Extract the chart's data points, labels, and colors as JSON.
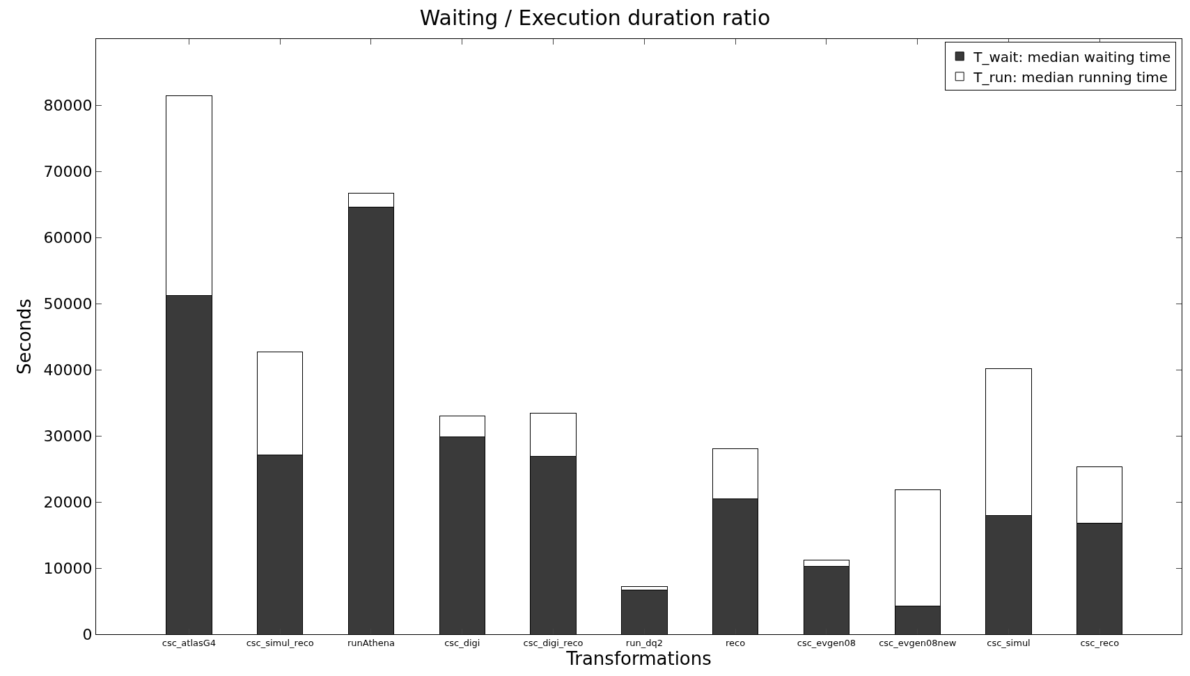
{
  "chart_data": {
    "type": "bar",
    "title": "Waiting / Execution duration ratio",
    "xlabel": "Transformations",
    "ylabel": "Seconds",
    "categories": [
      "csc_atlasG4",
      "csc_simul_reco",
      "runAthena",
      "csc_digi",
      "csc_digi_reco",
      "run_dq2",
      "reco",
      "csc_evgen08",
      "csc_evgen08new",
      "csc_simul",
      "csc_reco"
    ],
    "series": [
      {
        "name": "T_wait: median waiting time",
        "color": "#3a3a3a",
        "values": [
          51200,
          27100,
          64600,
          29800,
          26900,
          6700,
          20500,
          10300,
          4300,
          17900,
          16800
        ]
      },
      {
        "name": "T_run: median running time",
        "color": "#ffffff",
        "values": [
          30200,
          15600,
          2100,
          3200,
          6500,
          500,
          7600,
          900,
          17500,
          22300,
          8500
        ]
      }
    ],
    "stacked": true,
    "ylim": [
      0,
      90000
    ],
    "yticks": [
      0,
      10000,
      20000,
      30000,
      40000,
      50000,
      60000,
      70000,
      80000
    ],
    "grid": false,
    "legend": "top right"
  }
}
